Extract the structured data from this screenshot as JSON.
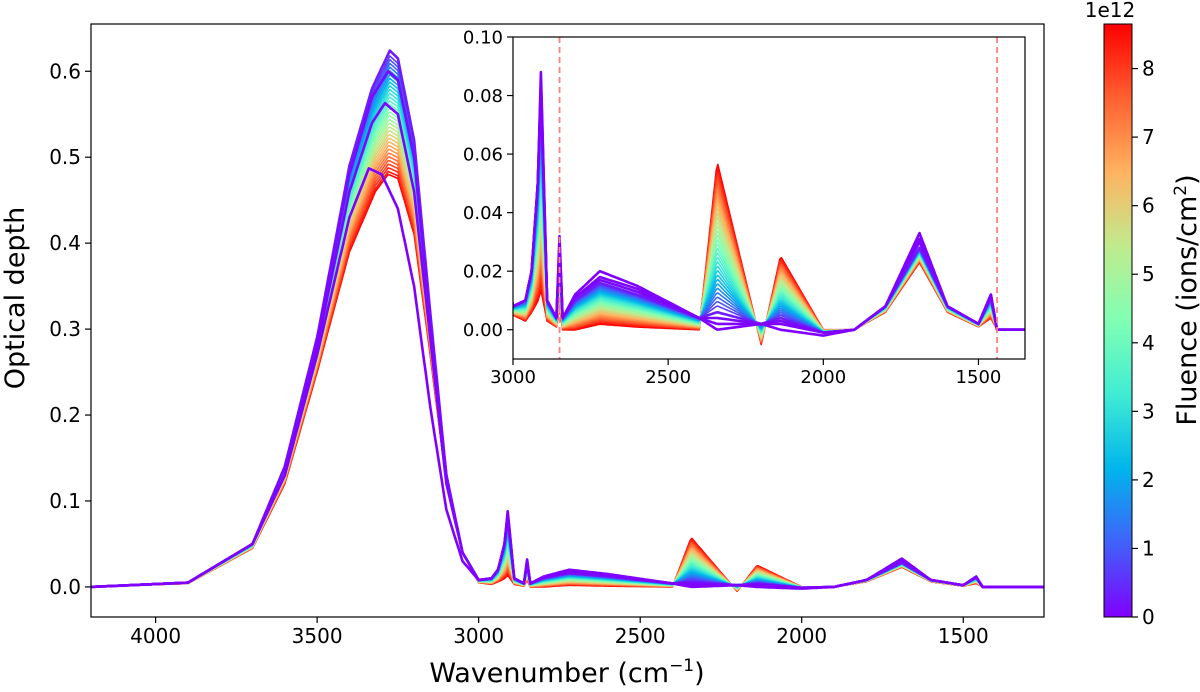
{
  "chart_data": [
    {
      "id": "main",
      "type": "line",
      "title": "",
      "xlabel": "Wavenumber (cm",
      "xlabel_sup": "−1",
      "xlabel_tail": ")",
      "ylabel": "Optical depth",
      "xlim": [
        4200,
        1250
      ],
      "ylim": [
        -0.035,
        0.655
      ],
      "x_inverted": true,
      "xticks": [
        4000,
        3500,
        3000,
        2500,
        2000,
        1500
      ],
      "xtick_labels": [
        "4000",
        "3500",
        "3000",
        "2500",
        "2000",
        "1500"
      ],
      "yticks": [
        0.0,
        0.1,
        0.2,
        0.3,
        0.4,
        0.5,
        0.6
      ],
      "ytick_labels": [
        "0.0",
        "0.1",
        "0.2",
        "0.3",
        "0.4",
        "0.5",
        "0.6"
      ],
      "grid": false,
      "series_description": "Family of spectra colored by fluence (0 to 8.6e12 ions/cm2)",
      "series": [
        {
          "name": "fluence 0",
          "fluence": 0.0,
          "x": [
            4200,
            3900,
            3700,
            3600,
            3500,
            3400,
            3340,
            3300,
            3250,
            3200,
            3150,
            3100,
            3050,
            3000,
            2960,
            2940,
            2920,
            2910,
            2890,
            2860,
            2850,
            2840,
            2800,
            2720,
            2600,
            2400,
            2342,
            2200,
            2138,
            2000,
            1900,
            1800,
            1690,
            1600,
            1500,
            1460,
            1440,
            1350,
            1250
          ],
          "values": [
            0.0,
            0.005,
            0.05,
            0.13,
            0.27,
            0.43,
            0.487,
            0.48,
            0.44,
            0.35,
            0.21,
            0.09,
            0.03,
            0.008,
            0.01,
            0.02,
            0.05,
            0.088,
            0.01,
            0.004,
            0.032,
            0.004,
            0.012,
            0.02,
            0.015,
            0.004,
            0.0,
            0.002,
            0.0,
            -0.002,
            0.0,
            0.008,
            0.033,
            0.008,
            0.002,
            0.012,
            0.0,
            0.0,
            0.0
          ]
        },
        {
          "name": "fluence 0.05",
          "fluence": 0.05,
          "x": [
            4200,
            3900,
            3700,
            3600,
            3500,
            3400,
            3330,
            3290,
            3250,
            3200,
            3150,
            3100,
            3050,
            3000,
            2960,
            2940,
            2920,
            2910,
            2890,
            2860,
            2850,
            2840,
            2800,
            2720,
            2600,
            2400,
            2342,
            2200,
            2138,
            2000,
            1900,
            1800,
            1690,
            1600,
            1500,
            1460,
            1440,
            1350,
            1250
          ],
          "values": [
            0.0,
            0.005,
            0.05,
            0.13,
            0.28,
            0.46,
            0.54,
            0.563,
            0.55,
            0.46,
            0.29,
            0.12,
            0.04,
            0.008,
            0.01,
            0.02,
            0.05,
            0.085,
            0.01,
            0.004,
            0.03,
            0.004,
            0.011,
            0.018,
            0.014,
            0.004,
            0.002,
            0.002,
            0.002,
            -0.001,
            0.0,
            0.008,
            0.031,
            0.008,
            0.002,
            0.012,
            0.0,
            0.0,
            0.0
          ]
        },
        {
          "name": "fluence 0.1",
          "fluence": 0.1,
          "x": [
            4200,
            3900,
            3700,
            3600,
            3500,
            3400,
            3330,
            3280,
            3250,
            3200,
            3150,
            3100,
            3050,
            3000,
            2960,
            2940,
            2920,
            2910,
            2890,
            2860,
            2850,
            2840,
            2800,
            2720,
            2600,
            2400,
            2342,
            2200,
            2138,
            2000,
            1900,
            1800,
            1690,
            1600,
            1500,
            1460,
            1440,
            1350,
            1250
          ],
          "values": [
            0.0,
            0.005,
            0.05,
            0.14,
            0.29,
            0.48,
            0.57,
            0.6,
            0.59,
            0.5,
            0.31,
            0.13,
            0.04,
            0.008,
            0.01,
            0.02,
            0.05,
            0.083,
            0.01,
            0.004,
            0.029,
            0.004,
            0.011,
            0.017,
            0.013,
            0.004,
            0.004,
            0.002,
            0.003,
            -0.001,
            0.0,
            0.008,
            0.03,
            0.008,
            0.002,
            0.011,
            0.0,
            0.0,
            0.0
          ]
        },
        {
          "name": "fluence 0.3",
          "fluence": 0.3,
          "x": [
            4200,
            3900,
            3700,
            3600,
            3500,
            3400,
            3330,
            3275,
            3250,
            3200,
            3150,
            3100,
            3050,
            3000,
            2960,
            2940,
            2920,
            2910,
            2890,
            2860,
            2850,
            2840,
            2800,
            2720,
            2600,
            2400,
            2342,
            2200,
            2138,
            2000,
            1900,
            1800,
            1690,
            1600,
            1500,
            1460,
            1440,
            1350,
            1250
          ],
          "values": [
            0.0,
            0.005,
            0.05,
            0.14,
            0.29,
            0.49,
            0.58,
            0.624,
            0.615,
            0.52,
            0.32,
            0.13,
            0.04,
            0.008,
            0.01,
            0.02,
            0.05,
            0.08,
            0.01,
            0.004,
            0.027,
            0.004,
            0.01,
            0.016,
            0.012,
            0.004,
            0.006,
            0.002,
            0.004,
            -0.001,
            0.0,
            0.008,
            0.028,
            0.008,
            0.002,
            0.011,
            0.0,
            0.0,
            0.0
          ]
        },
        {
          "name": "fluence 8.6e12",
          "fluence": 8.6,
          "x": [
            4200,
            3900,
            3700,
            3600,
            3500,
            3400,
            3320,
            3280,
            3250,
            3200,
            3150,
            3100,
            3050,
            3000,
            2960,
            2940,
            2920,
            2910,
            2890,
            2860,
            2850,
            2840,
            2800,
            2720,
            2600,
            2400,
            2342,
            2200,
            2138,
            2000,
            1900,
            1800,
            1690,
            1600,
            1500,
            1460,
            1440,
            1350,
            1250
          ],
          "values": [
            0.0,
            0.004,
            0.045,
            0.12,
            0.25,
            0.39,
            0.46,
            0.48,
            0.475,
            0.41,
            0.27,
            0.12,
            0.04,
            0.005,
            0.003,
            0.006,
            0.01,
            0.014,
            0.003,
            0.001,
            0.008,
            0.0,
            0.0,
            0.002,
            0.001,
            0.0,
            0.057,
            -0.005,
            0.025,
            0.0,
            0.0,
            0.006,
            0.023,
            0.006,
            0.001,
            0.004,
            0.0,
            0.0,
            0.0
          ]
        }
      ],
      "annotations": []
    },
    {
      "id": "inset",
      "type": "line",
      "title": "",
      "xlabel": "",
      "ylabel": "",
      "xlim": [
        3000,
        1350
      ],
      "ylim": [
        -0.01,
        0.1
      ],
      "x_inverted": true,
      "xticks": [
        3000,
        2500,
        2000,
        1500
      ],
      "xtick_labels": [
        "3000",
        "2500",
        "2000",
        "1500"
      ],
      "yticks": [
        0.0,
        0.02,
        0.04,
        0.06,
        0.08,
        0.1
      ],
      "ytick_labels": [
        "0.00",
        "0.02",
        "0.04",
        "0.06",
        "0.08",
        "0.10"
      ],
      "grid": false,
      "vlines": [
        {
          "x": 2850,
          "color": "#ff8080",
          "style": "dashed"
        },
        {
          "x": 1440,
          "color": "#ff8080",
          "style": "dashed"
        }
      ]
    }
  ],
  "colorbar": {
    "label": "Fluence (ions/cm",
    "label_sup": "2",
    "label_tail": ")",
    "multiplier": "1e12",
    "min": 0,
    "max": 8.65,
    "ticks": [
      0,
      1,
      2,
      3,
      4,
      5,
      6,
      7,
      8
    ],
    "tick_labels": [
      "0",
      "1",
      "2",
      "3",
      "4",
      "5",
      "6",
      "7",
      "8"
    ],
    "colormap": "rainbow",
    "colors": [
      "#8000ff",
      "#4062fa",
      "#00b5eb",
      "#40ecd4",
      "#80ffb4",
      "#c0eb8d",
      "#ffb360",
      "#ff6030",
      "#ff0000"
    ]
  }
}
